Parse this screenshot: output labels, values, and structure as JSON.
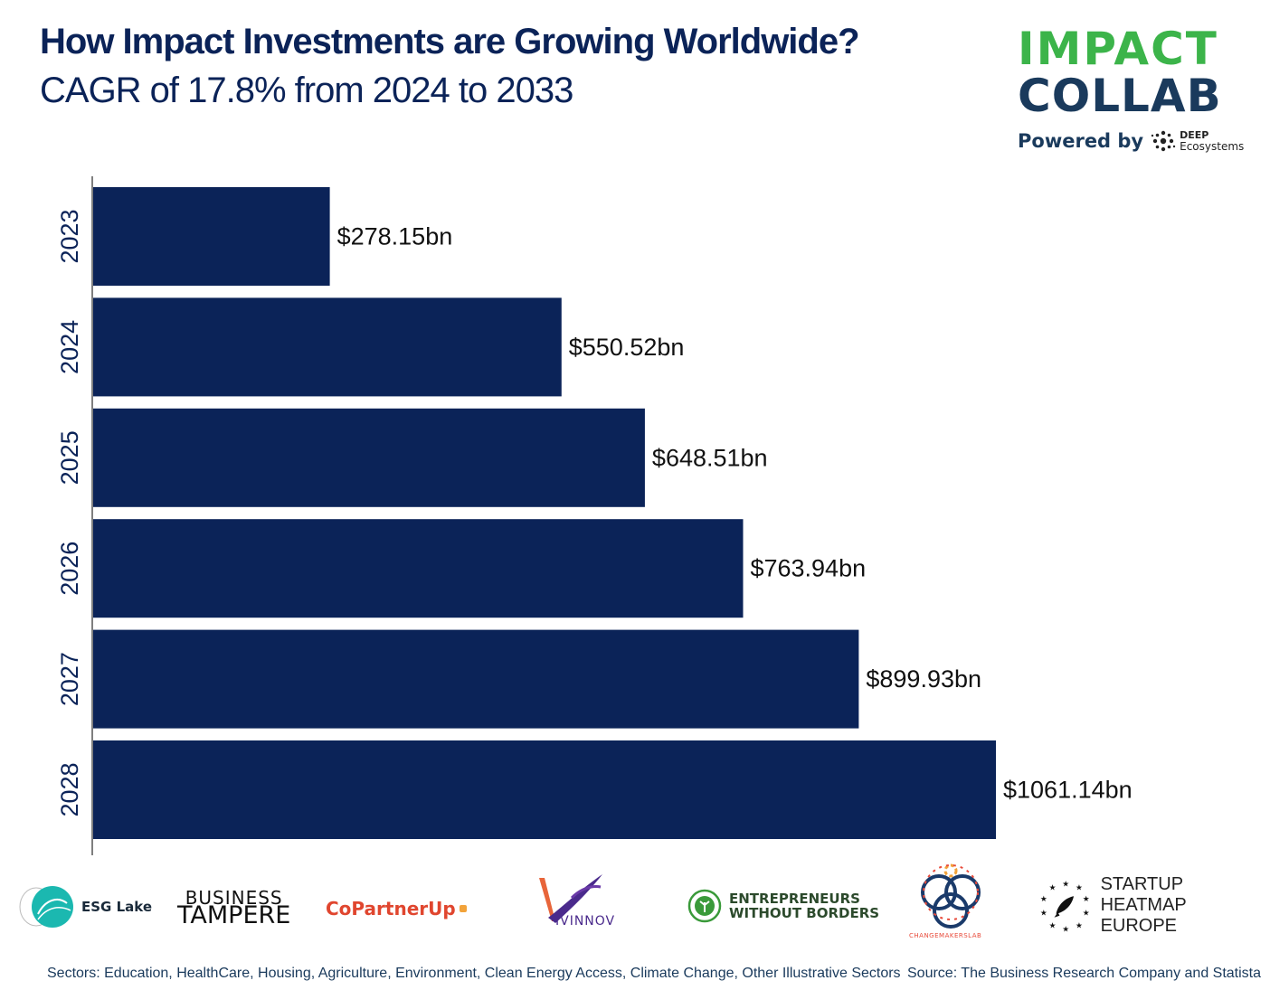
{
  "header": {
    "title": "How Impact Investments are Growing Worldwide?",
    "subtitle": "CAGR of 17.8% from 2024 to 2033"
  },
  "brand": {
    "line1": "IMPACT",
    "line2": "COLLAB",
    "powered_by": "Powered by",
    "deep_top": "DEEP",
    "deep_bottom": "Ecosystems",
    "green": "#3cb44a",
    "navy": "#1a3a5c"
  },
  "chart_data": {
    "type": "bar",
    "orientation": "horizontal",
    "categories": [
      "2023",
      "2024",
      "2025",
      "2026",
      "2027",
      "2028"
    ],
    "values": [
      278.15,
      550.52,
      648.51,
      763.94,
      899.93,
      1061.14
    ],
    "value_labels": [
      "$278.15bn",
      "$550.52bn",
      "$648.51bn",
      "$763.94bn",
      "$899.93bn",
      "$1061.14bn"
    ],
    "title": "How Impact Investments are Growing Worldwide?",
    "subtitle": "CAGR of 17.8% from 2024 to 2033",
    "xlim": [
      0,
      1061.14
    ],
    "grid": false,
    "bar_color": "#0b2358"
  },
  "logos": [
    {
      "name": "ESG Lake",
      "text": "ESG Lake",
      "icon": "wave-circle-icon"
    },
    {
      "name": "Business Tampere",
      "line1": "BUSINESS",
      "line2": "TAMPERE"
    },
    {
      "name": "CoPartnerUp",
      "text": "CoPartnerUp"
    },
    {
      "name": "Vivinnov",
      "text": "IVINNOV",
      "icon": "v-bird-icon"
    },
    {
      "name": "Entrepreneurs Without Borders",
      "line1": "ENTREPRENEURS",
      "line2": "WITHOUT BORDERS",
      "icon": "leaf-circle-icon"
    },
    {
      "name": "Changemakerslab",
      "text": "CHANGEMAKERSLAB",
      "icon": "rings-icon"
    },
    {
      "name": "Startup Heatmap Europe",
      "line1": "STARTUP HEATMAP",
      "line2": "EUROPE",
      "icon": "rocket-stars-icon"
    }
  ],
  "footer": {
    "sectors": "Sectors: Education, HealthCare, Housing, Agriculture, Environment, Clean Energy Access, Climate Change, Other Illustrative Sectors",
    "source": "Source: The Business Research Company and Statista"
  }
}
